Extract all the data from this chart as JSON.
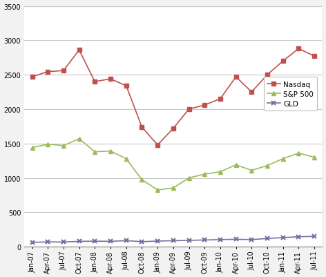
{
  "labels": [
    "Jan-07",
    "Apr-07",
    "Jul-07",
    "Oct-07",
    "Jan-08",
    "Apr-08",
    "Jul-08",
    "Oct-08",
    "Jan-09",
    "Apr-09",
    "Jul-09",
    "Oct-09",
    "Jan-10",
    "Apr-10",
    "Jul-10",
    "Oct-10",
    "Jan-11",
    "Apr-11",
    "Jul-11"
  ],
  "nasdaq": [
    2470,
    2545,
    2560,
    2860,
    2400,
    2440,
    2340,
    1740,
    1480,
    1720,
    2000,
    2060,
    2150,
    2470,
    2250,
    2500,
    2700,
    2880,
    2770
  ],
  "sp500": [
    1440,
    1490,
    1470,
    1570,
    1380,
    1390,
    1280,
    975,
    825,
    855,
    1000,
    1055,
    1090,
    1190,
    1110,
    1180,
    1280,
    1360,
    1300
  ],
  "gld": [
    63,
    70,
    68,
    78,
    80,
    78,
    88,
    73,
    82,
    87,
    92,
    98,
    103,
    108,
    103,
    120,
    132,
    145,
    150
  ],
  "nasdaq_color": "#C0504D",
  "sp500_color": "#9BBB59",
  "gld_color": "#7B6CA0",
  "bg_color": "#F2F2F2",
  "plot_bg_color": "#FFFFFF",
  "grid_color": "#C8C8C8",
  "axis_color": "#808080",
  "ylim": [
    0,
    3500
  ],
  "yticks": [
    0,
    500,
    1000,
    1500,
    2000,
    2500,
    3000,
    3500
  ],
  "legend_labels": [
    "Nasdaq",
    "S&P 500",
    "GLD"
  ],
  "tick_fontsize": 7,
  "legend_fontsize": 7.5
}
